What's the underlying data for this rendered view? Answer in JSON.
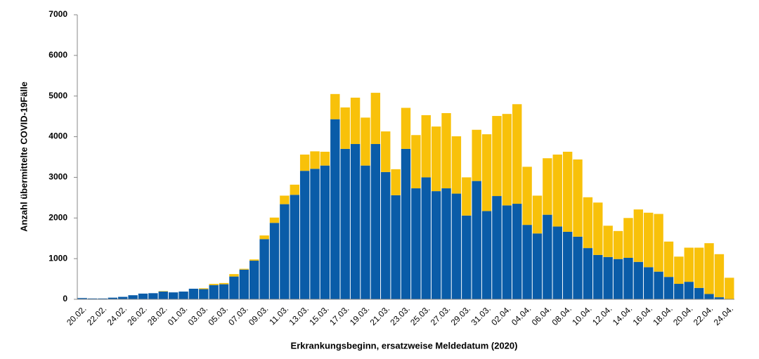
{
  "chart_data": {
    "type": "stacked_bar",
    "xlabel": "Erkrankungsbeginn, ersatzweise Meldedatum (2020)",
    "ylabel": "Anzahl übermittelte COVID-19Fälle",
    "categories": [
      "20.02.",
      null,
      "22.02.",
      null,
      "24.02.",
      null,
      "26.02.",
      null,
      "28.02.",
      null,
      "01.03.",
      null,
      "03.03.",
      null,
      "05.03.",
      null,
      "07.03.",
      null,
      "09.03.",
      null,
      "11.03.",
      null,
      "13.03.",
      null,
      "15.03.",
      null,
      "17.03.",
      null,
      "19.03.",
      null,
      "21.03.",
      null,
      "23.03.",
      null,
      "25.03.",
      null,
      "27.03.",
      null,
      "29.03.",
      null,
      "31.03.",
      null,
      "02.04.",
      null,
      "04.04.",
      null,
      "06.04.",
      null,
      "08.04.",
      null,
      "10.04.",
      null,
      "12.04.",
      null,
      "14.04.",
      null,
      "16.04.",
      null,
      "18.04.",
      null,
      "20.04.",
      null,
      "22.04.",
      null,
      "24.04."
    ],
    "series": [
      {
        "color": "#0a5ca8",
        "values": [
          30,
          20,
          20,
          40,
          60,
          100,
          140,
          150,
          190,
          170,
          190,
          260,
          250,
          350,
          370,
          560,
          730,
          950,
          1480,
          1880,
          2340,
          2570,
          3160,
          3210,
          3290,
          4430,
          3700,
          3820,
          3290,
          3820,
          3130,
          2560,
          3700,
          2730,
          3000,
          2660,
          2730,
          2600,
          2060,
          2910,
          2170,
          2540,
          2310,
          2350,
          1830,
          1620,
          2080,
          1790,
          1660,
          1540,
          1260,
          1090,
          1040,
          990,
          1020,
          920,
          790,
          680,
          550,
          380,
          430,
          280,
          130,
          50,
          0
        ]
      },
      {
        "color": "#f8c10a",
        "values": [
          0,
          0,
          0,
          0,
          0,
          0,
          0,
          0,
          10,
          0,
          0,
          0,
          20,
          30,
          30,
          60,
          20,
          30,
          90,
          130,
          210,
          250,
          400,
          430,
          340,
          620,
          1020,
          1140,
          1180,
          1260,
          1000,
          640,
          1010,
          1310,
          1530,
          1590,
          1850,
          1410,
          940,
          1260,
          1890,
          1970,
          2250,
          2450,
          1430,
          930,
          1390,
          1770,
          1970,
          1900,
          1250,
          1290,
          770,
          690,
          980,
          1290,
          1340,
          1420,
          870,
          670,
          840,
          990,
          1250,
          1060,
          530
        ]
      }
    ],
    "ylim": [
      0,
      7000
    ],
    "yticks": [
      0,
      1000,
      2000,
      3000,
      4000,
      5000,
      6000,
      7000
    ],
    "grid": false
  }
}
